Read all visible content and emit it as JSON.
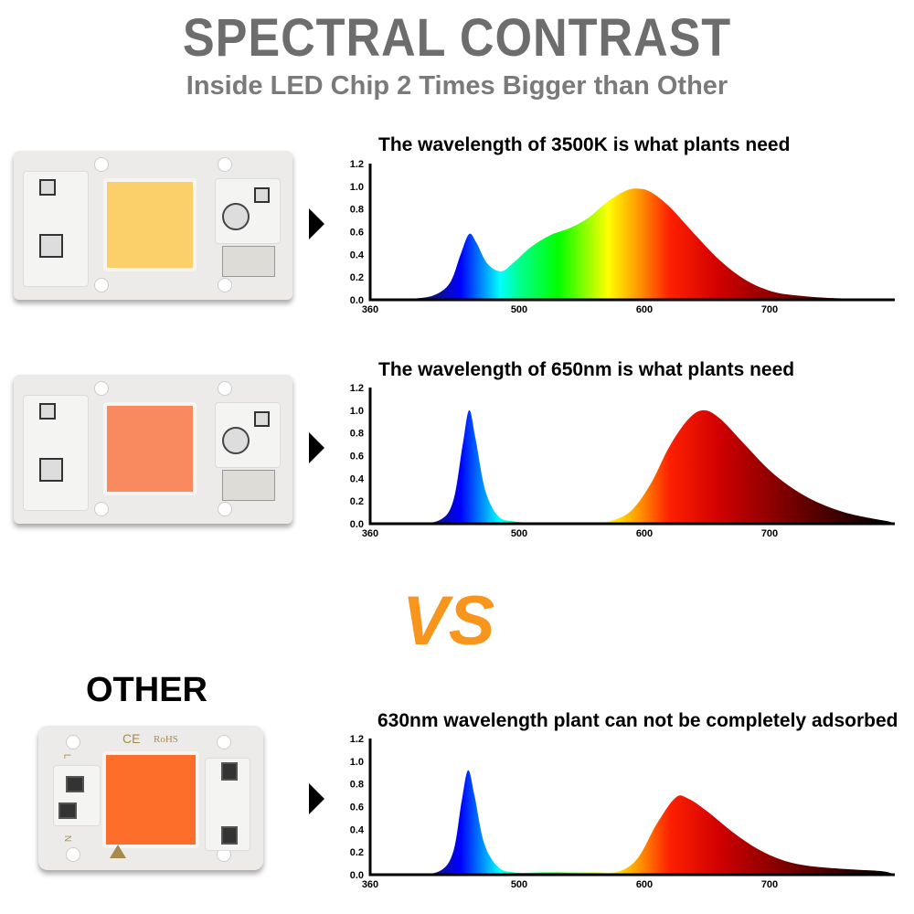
{
  "header": {
    "title": "SPECTRAL CONTRAST",
    "subtitle": "Inside LED Chip 2 Times Bigger than Other"
  },
  "vs_label": "VS",
  "other_label": "OTHER",
  "chips": [
    {
      "name": "3500K chip",
      "die_color": "#fbcf6a"
    },
    {
      "name": "650nm chip",
      "die_color": "#f98a5f"
    },
    {
      "name": "other chip",
      "die_color": "#fc6e2a",
      "markings": [
        "CE",
        "RoHS",
        "L",
        "N"
      ]
    }
  ],
  "colors": {
    "title": "#6d6d6d",
    "vs": "#f7951d"
  },
  "chart_data": [
    {
      "type": "area",
      "title": "The wavelength of 3500K is what plants need",
      "xlim": [
        360,
        800
      ],
      "ylim": [
        0,
        1.2
      ],
      "xticks": [
        "360",
        "500",
        "600",
        "700"
      ],
      "yticks": [
        "0.0",
        "0.2",
        "0.4",
        "0.6",
        "0.8",
        "1.0",
        "1.2"
      ],
      "fill": "spectral gradient",
      "x": [
        360,
        380,
        400,
        420,
        435,
        445,
        453,
        460,
        470,
        483,
        495,
        510,
        525,
        540,
        555,
        570,
        585,
        595,
        605,
        620,
        640,
        660,
        680,
        700,
        720,
        750,
        800
      ],
      "y": [
        0,
        0,
        0.01,
        0.04,
        0.15,
        0.4,
        0.58,
        0.5,
        0.32,
        0.25,
        0.33,
        0.47,
        0.57,
        0.63,
        0.72,
        0.86,
        0.96,
        0.98,
        0.95,
        0.82,
        0.58,
        0.35,
        0.18,
        0.08,
        0.04,
        0.015,
        0
      ]
    },
    {
      "type": "area",
      "title": "The wavelength of 650nm is what plants need",
      "xlim": [
        360,
        800
      ],
      "ylim": [
        0,
        1.2
      ],
      "xticks": [
        "360",
        "500",
        "600",
        "700"
      ],
      "yticks": [
        "0.0",
        "0.2",
        "0.4",
        "0.6",
        "0.8",
        "1.0",
        "1.2"
      ],
      "fill": "spectral gradient",
      "x": [
        360,
        400,
        425,
        438,
        447,
        453,
        459,
        468,
        480,
        495,
        520,
        560,
        575,
        590,
        605,
        620,
        635,
        647,
        660,
        680,
        700,
        720,
        740,
        760,
        780,
        795,
        800
      ],
      "y": [
        0,
        0.005,
        0.03,
        0.2,
        0.7,
        1.0,
        0.75,
        0.3,
        0.07,
        0.02,
        0.01,
        0.01,
        0.03,
        0.12,
        0.35,
        0.68,
        0.92,
        1.0,
        0.93,
        0.7,
        0.47,
        0.3,
        0.18,
        0.1,
        0.05,
        0.02,
        0
      ]
    },
    {
      "type": "area",
      "title": "630nm wavelength plant can not be completely adsorbed",
      "xlim": [
        360,
        800
      ],
      "ylim": [
        0,
        1.2
      ],
      "xticks": [
        "360",
        "500",
        "600",
        "700"
      ],
      "yticks": [
        "0.0",
        "0.2",
        "0.4",
        "0.6",
        "0.8",
        "1.0",
        "1.2"
      ],
      "fill": "spectral gradient",
      "x": [
        360,
        400,
        425,
        438,
        446,
        452,
        458,
        467,
        480,
        495,
        520,
        560,
        580,
        595,
        610,
        625,
        635,
        650,
        670,
        690,
        710,
        730,
        760,
        790,
        800
      ],
      "y": [
        0,
        0.005,
        0.03,
        0.2,
        0.65,
        0.92,
        0.7,
        0.28,
        0.07,
        0.02,
        0.02,
        0.02,
        0.03,
        0.15,
        0.45,
        0.68,
        0.67,
        0.56,
        0.38,
        0.23,
        0.13,
        0.08,
        0.05,
        0.03,
        0
      ]
    }
  ]
}
